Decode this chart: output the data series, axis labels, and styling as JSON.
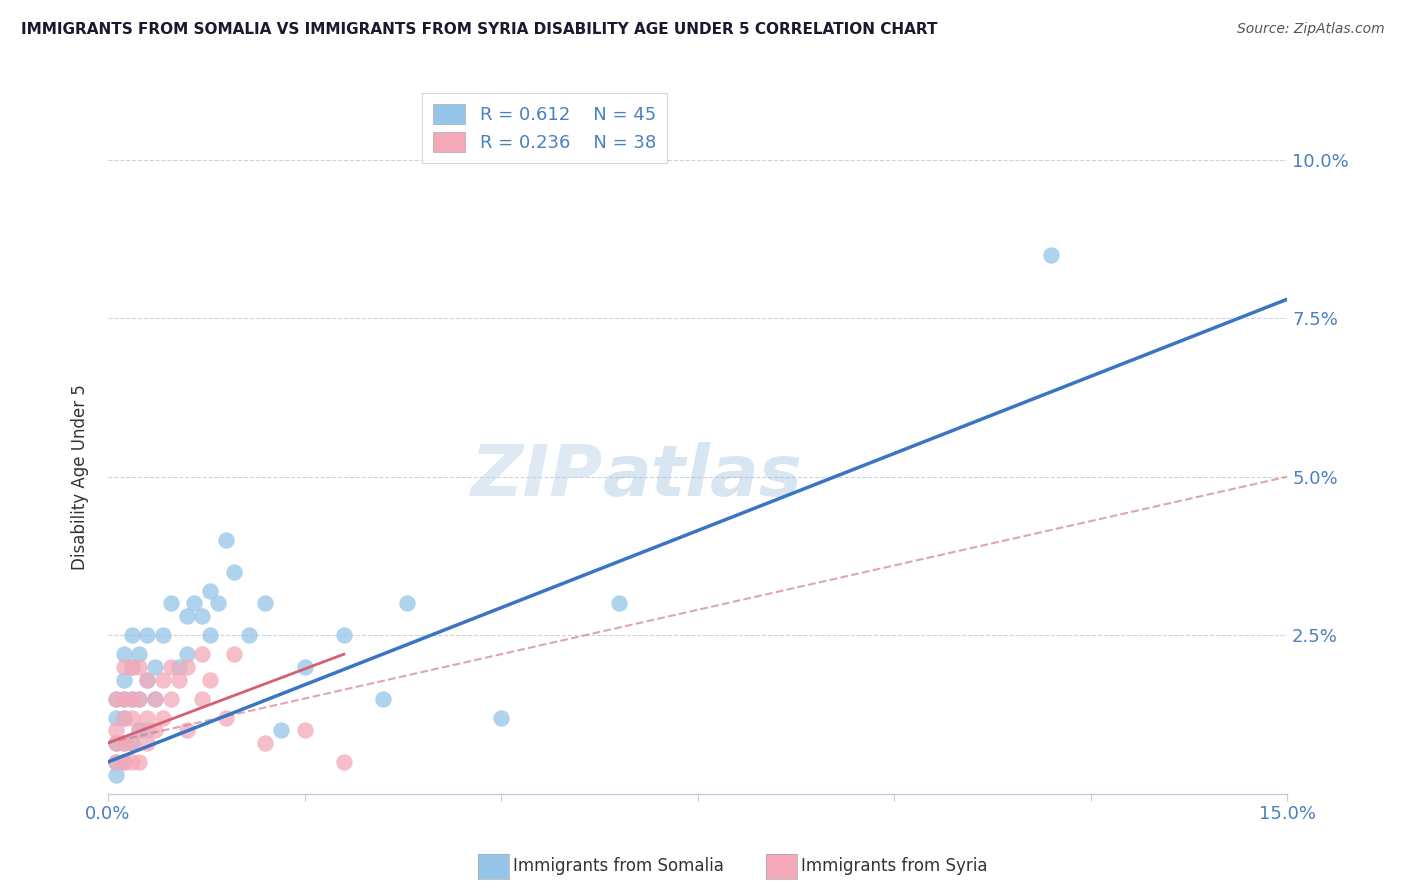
{
  "title": "IMMIGRANTS FROM SOMALIA VS IMMIGRANTS FROM SYRIA DISABILITY AGE UNDER 5 CORRELATION CHART",
  "source": "Source: ZipAtlas.com",
  "ylabel": "Disability Age Under 5",
  "xlim": [
    0,
    0.15
  ],
  "ylim": [
    0,
    0.1
  ],
  "yticks": [
    0.0,
    0.025,
    0.05,
    0.075,
    0.1
  ],
  "ytick_labels": [
    "",
    "2.5%",
    "5.0%",
    "7.5%",
    "10.0%"
  ],
  "somalia_color": "#95c5e8",
  "syria_color": "#f4a8b8",
  "somalia_line_color": "#3a75c4",
  "syria_line_color": "#d46070",
  "syria_dashed_color": "#d08090",
  "R_somalia": 0.612,
  "N_somalia": 45,
  "R_syria": 0.236,
  "N_syria": 38,
  "watermark": "ZIPatlas",
  "somalia_x": [
    0.001,
    0.001,
    0.001,
    0.001,
    0.001,
    0.002,
    0.002,
    0.002,
    0.002,
    0.002,
    0.002,
    0.003,
    0.003,
    0.003,
    0.003,
    0.004,
    0.004,
    0.004,
    0.005,
    0.005,
    0.005,
    0.006,
    0.006,
    0.007,
    0.008,
    0.009,
    0.01,
    0.01,
    0.011,
    0.012,
    0.013,
    0.013,
    0.014,
    0.015,
    0.016,
    0.018,
    0.02,
    0.022,
    0.025,
    0.03,
    0.035,
    0.038,
    0.05,
    0.065,
    0.12
  ],
  "somalia_y": [
    0.003,
    0.005,
    0.008,
    0.012,
    0.015,
    0.005,
    0.008,
    0.012,
    0.015,
    0.018,
    0.022,
    0.008,
    0.015,
    0.02,
    0.025,
    0.01,
    0.015,
    0.022,
    0.01,
    0.018,
    0.025,
    0.015,
    0.02,
    0.025,
    0.03,
    0.02,
    0.022,
    0.028,
    0.03,
    0.028,
    0.025,
    0.032,
    0.03,
    0.04,
    0.035,
    0.025,
    0.03,
    0.01,
    0.02,
    0.025,
    0.015,
    0.03,
    0.012,
    0.03,
    0.085
  ],
  "syria_x": [
    0.001,
    0.001,
    0.001,
    0.001,
    0.002,
    0.002,
    0.002,
    0.002,
    0.002,
    0.003,
    0.003,
    0.003,
    0.003,
    0.003,
    0.004,
    0.004,
    0.004,
    0.004,
    0.005,
    0.005,
    0.005,
    0.006,
    0.006,
    0.007,
    0.007,
    0.008,
    0.008,
    0.009,
    0.01,
    0.01,
    0.012,
    0.012,
    0.013,
    0.015,
    0.016,
    0.02,
    0.025,
    0.03
  ],
  "syria_y": [
    0.005,
    0.008,
    0.01,
    0.015,
    0.005,
    0.008,
    0.012,
    0.015,
    0.02,
    0.005,
    0.008,
    0.012,
    0.015,
    0.02,
    0.005,
    0.01,
    0.015,
    0.02,
    0.008,
    0.012,
    0.018,
    0.01,
    0.015,
    0.012,
    0.018,
    0.015,
    0.02,
    0.018,
    0.01,
    0.02,
    0.015,
    0.022,
    0.018,
    0.012,
    0.022,
    0.008,
    0.01,
    0.005
  ],
  "background_color": "#ffffff",
  "grid_color": "#c8d4e8",
  "tick_color": "#4a7fc0",
  "title_color": "#1a1a2e",
  "axis_color": "#c0cce0",
  "legend_color": "#4a7fc0"
}
